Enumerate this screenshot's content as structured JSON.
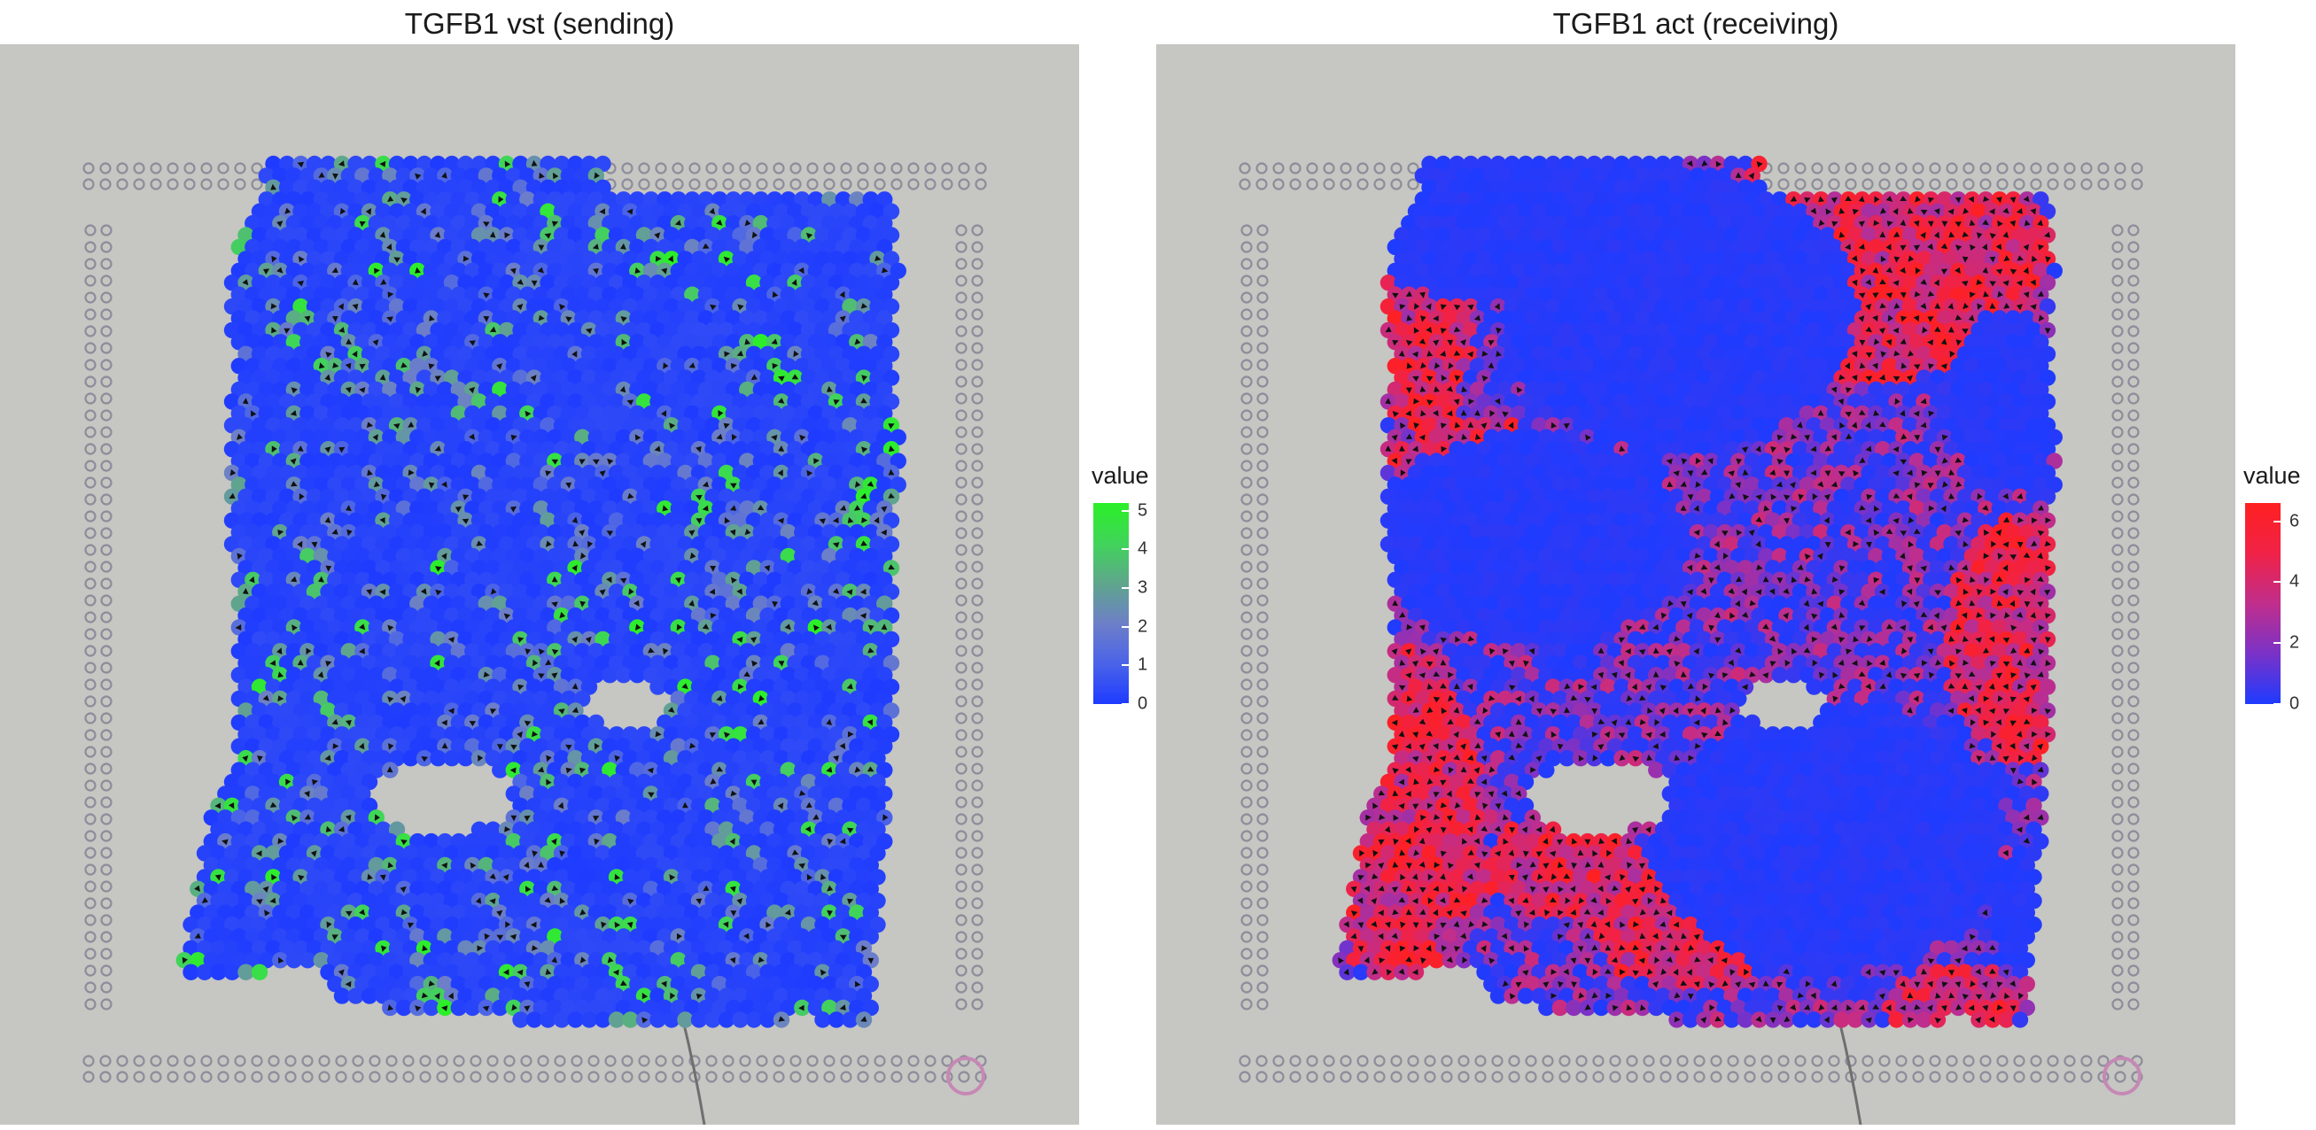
{
  "chart_data": [
    {
      "type": "spatial-scatter",
      "title": "TGFB1 vst (sending)",
      "colorbar": {
        "title": "value",
        "min": 0,
        "max": 5.2,
        "ticks": [
          0,
          1,
          2,
          3,
          4,
          5
        ],
        "colors": [
          "#1E3BFF",
          "#4A63E8",
          "#6D7FC8",
          "#5FA68C",
          "#40D45A",
          "#2BF027"
        ]
      },
      "legend_placement": "right",
      "grid": false,
      "background": "H&E tissue image"
    },
    {
      "type": "spatial-scatter",
      "title": "TGFB1 act (receiving)",
      "colorbar": {
        "title": "value",
        "min": 0,
        "max": 6.6,
        "ticks": [
          0,
          2,
          4,
          6
        ],
        "colors": [
          "#1E3BFF",
          "#7A32C8",
          "#C02E8C",
          "#F02247",
          "#FF2020"
        ]
      },
      "legend_placement": "right",
      "grid": false,
      "background": "H&E tissue image"
    }
  ]
}
